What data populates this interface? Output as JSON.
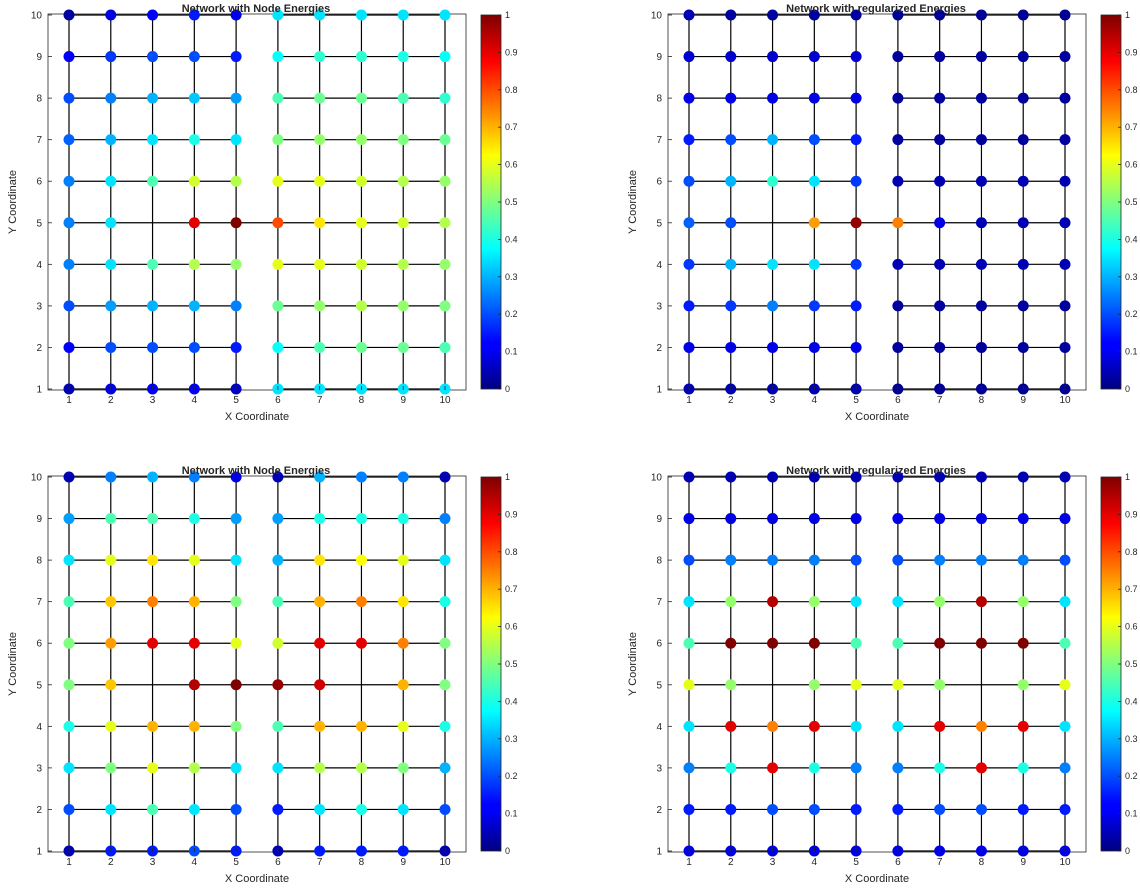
{
  "chart_data": [
    {
      "type": "scatter",
      "title": "Network with Node Energies",
      "xlabel": "X Coordinate",
      "ylabel": "Y Coordinate",
      "xlim": [
        1,
        10
      ],
      "ylim": [
        1,
        10
      ],
      "xticks": [
        "1",
        "2",
        "3",
        "4",
        "5",
        "6",
        "7",
        "8",
        "9",
        "10"
      ],
      "yticks": [
        "1",
        "2",
        "3",
        "4",
        "5",
        "6",
        "7",
        "8",
        "9",
        "10"
      ],
      "colorbar": {
        "ticks": [
          "0",
          "0.1",
          "0.2",
          "0.3",
          "0.4",
          "0.5",
          "0.6",
          "0.7",
          "0.8",
          "0.9",
          "1"
        ],
        "range": [
          0,
          1
        ],
        "colormap": "jet"
      },
      "grid_links": "4-neighbour grid; column 5 and column 6 connected only at y=5; row y=5 missing links between x=2 and x=4",
      "energy_grid": [
        [
          0.05,
          0.1,
          0.12,
          0.12,
          0.07,
          0.35,
          0.35,
          0.35,
          0.35,
          0.35
        ],
        [
          0.12,
          0.2,
          0.2,
          0.2,
          0.15,
          0.38,
          0.45,
          0.48,
          0.48,
          0.45
        ],
        [
          0.2,
          0.28,
          0.3,
          0.3,
          0.25,
          0.48,
          0.52,
          0.55,
          0.52,
          0.5
        ],
        [
          0.25,
          0.35,
          0.45,
          0.55,
          0.52,
          0.6,
          0.6,
          0.58,
          0.55,
          0.52
        ],
        [
          0.25,
          0.35,
          null,
          0.9,
          1.0,
          0.8,
          0.65,
          0.6,
          0.58,
          0.55
        ],
        [
          0.25,
          0.35,
          0.45,
          0.58,
          0.55,
          0.6,
          0.6,
          0.58,
          0.55,
          0.52
        ],
        [
          0.22,
          0.3,
          0.35,
          0.4,
          0.35,
          0.5,
          0.52,
          0.52,
          0.5,
          0.48
        ],
        [
          0.2,
          0.25,
          0.3,
          0.32,
          0.28,
          0.45,
          0.48,
          0.48,
          0.45,
          0.42
        ],
        [
          0.12,
          0.18,
          0.2,
          0.2,
          0.15,
          0.38,
          0.42,
          0.42,
          0.4,
          0.38
        ],
        [
          0.03,
          0.1,
          0.12,
          0.15,
          0.1,
          0.35,
          0.35,
          0.35,
          0.35,
          0.35
        ]
      ]
    },
    {
      "type": "scatter",
      "title": "Network with regularized Energies",
      "xlabel": "X Coordinate",
      "ylabel": "Y Coordinate",
      "xlim": [
        1,
        10
      ],
      "ylim": [
        1,
        10
      ],
      "xticks": [
        "1",
        "2",
        "3",
        "4",
        "5",
        "6",
        "7",
        "8",
        "9",
        "10"
      ],
      "yticks": [
        "1",
        "2",
        "3",
        "4",
        "5",
        "6",
        "7",
        "8",
        "9",
        "10"
      ],
      "colorbar": {
        "ticks": [
          "0",
          "0.1",
          "0.2",
          "0.3",
          "0.4",
          "0.5",
          "0.6",
          "0.7",
          "0.8",
          "0.9",
          "1"
        ],
        "range": [
          0,
          1
        ],
        "colormap": "jet"
      },
      "grid_links": "4-neighbour grid; column 5 and column 6 connected only at y=5; row y=5 missing links between x=2 and x=4",
      "energy_grid": [
        [
          0.05,
          0.05,
          0.05,
          0.05,
          0.05,
          0.02,
          0.02,
          0.02,
          0.02,
          0.02
        ],
        [
          0.1,
          0.1,
          0.1,
          0.1,
          0.1,
          0.03,
          0.03,
          0.03,
          0.03,
          0.03
        ],
        [
          0.15,
          0.18,
          0.25,
          0.18,
          0.15,
          0.03,
          0.03,
          0.03,
          0.03,
          0.03
        ],
        [
          0.18,
          0.3,
          0.35,
          0.35,
          0.18,
          0.05,
          0.05,
          0.05,
          0.05,
          0.05
        ],
        [
          0.22,
          0.2,
          null,
          0.72,
          0.98,
          0.75,
          0.1,
          0.05,
          0.05,
          0.05
        ],
        [
          0.2,
          0.3,
          0.42,
          0.35,
          0.18,
          0.05,
          0.05,
          0.05,
          0.05,
          0.05
        ],
        [
          0.15,
          0.2,
          0.3,
          0.2,
          0.15,
          0.03,
          0.03,
          0.03,
          0.03,
          0.03
        ],
        [
          0.1,
          0.1,
          0.1,
          0.1,
          0.1,
          0.03,
          0.03,
          0.03,
          0.03,
          0.03
        ],
        [
          0.08,
          0.08,
          0.08,
          0.08,
          0.08,
          0.03,
          0.03,
          0.03,
          0.03,
          0.03
        ],
        [
          0.05,
          0.03,
          0.03,
          0.03,
          0.03,
          0.02,
          0.02,
          0.02,
          0.02,
          0.02
        ]
      ]
    },
    {
      "type": "scatter",
      "title": "Network with Node Energies",
      "xlabel": "X Coordinate",
      "ylabel": "Y Coordinate",
      "xlim": [
        1,
        10
      ],
      "ylim": [
        1,
        10
      ],
      "xticks": [
        "1",
        "2",
        "3",
        "4",
        "5",
        "6",
        "7",
        "8",
        "9",
        "10"
      ],
      "yticks": [
        "1",
        "2",
        "3",
        "4",
        "5",
        "6",
        "7",
        "8",
        "9",
        "10"
      ],
      "colorbar": {
        "ticks": [
          "0",
          "0.1",
          "0.2",
          "0.3",
          "0.4",
          "0.5",
          "0.6",
          "0.7",
          "0.8",
          "0.9",
          "1"
        ],
        "range": [
          0,
          1
        ],
        "colormap": "jet"
      },
      "grid_links": "4-neighbour grid; column 5 and column 6 connected only at y=5; row y=5 missing links between x=2 and x=4",
      "energy_grid": [
        [
          0.05,
          0.15,
          0.15,
          0.2,
          0.15,
          0.05,
          0.15,
          0.15,
          0.15,
          0.05
        ],
        [
          0.2,
          0.35,
          0.45,
          0.35,
          0.2,
          0.15,
          0.35,
          0.4,
          0.35,
          0.2
        ],
        [
          0.35,
          0.5,
          0.6,
          0.55,
          0.35,
          0.35,
          0.55,
          0.55,
          0.5,
          0.3
        ],
        [
          0.4,
          0.6,
          0.7,
          0.7,
          0.5,
          0.45,
          0.7,
          0.7,
          0.6,
          0.4
        ],
        [
          0.5,
          0.68,
          null,
          0.95,
          1.0,
          0.98,
          0.92,
          null,
          0.7,
          0.5
        ],
        [
          0.5,
          0.72,
          0.9,
          0.9,
          0.6,
          0.58,
          0.9,
          0.9,
          0.75,
          0.5
        ],
        [
          0.45,
          0.68,
          0.75,
          0.7,
          0.5,
          0.45,
          0.7,
          0.75,
          0.65,
          0.4
        ],
        [
          0.35,
          0.6,
          0.65,
          0.6,
          0.35,
          0.3,
          0.65,
          0.62,
          0.6,
          0.35
        ],
        [
          0.28,
          0.45,
          0.45,
          0.4,
          0.28,
          0.28,
          0.4,
          0.4,
          0.4,
          0.25
        ],
        [
          0.05,
          0.25,
          0.3,
          0.25,
          0.1,
          0.05,
          0.3,
          0.25,
          0.25,
          0.05
        ]
      ]
    },
    {
      "type": "scatter",
      "title": "Network with regularized Energies",
      "xlabel": "X Coordinate",
      "ylabel": "Y Coordinate",
      "xlim": [
        1,
        10
      ],
      "ylim": [
        1,
        10
      ],
      "xticks": [
        "1",
        "2",
        "3",
        "4",
        "5",
        "6",
        "7",
        "8",
        "9",
        "10"
      ],
      "yticks": [
        "1",
        "2",
        "3",
        "4",
        "5",
        "6",
        "7",
        "8",
        "9",
        "10"
      ],
      "colorbar": {
        "ticks": [
          "0",
          "0.1",
          "0.2",
          "0.3",
          "0.4",
          "0.5",
          "0.6",
          "0.7",
          "0.8",
          "0.9",
          "1"
        ],
        "range": [
          0,
          1
        ],
        "colormap": "jet"
      },
      "grid_links": "4-neighbour grid; column 5 and column 6 connected only at y=5; row y=5 missing links between x=2 and x=4",
      "energy_grid": [
        [
          0.1,
          0.1,
          0.1,
          0.1,
          0.1,
          0.1,
          0.1,
          0.1,
          0.1,
          0.1
        ],
        [
          0.15,
          0.15,
          0.2,
          0.2,
          0.15,
          0.15,
          0.2,
          0.2,
          0.15,
          0.15
        ],
        [
          0.25,
          0.4,
          0.9,
          0.4,
          0.25,
          0.25,
          0.4,
          0.9,
          0.4,
          0.25
        ],
        [
          0.35,
          0.9,
          0.75,
          0.9,
          0.35,
          0.35,
          0.9,
          0.75,
          0.9,
          0.35
        ],
        [
          0.6,
          0.52,
          null,
          0.52,
          0.6,
          0.6,
          0.52,
          null,
          0.52,
          0.6
        ],
        [
          0.45,
          1.0,
          1.0,
          1.0,
          0.45,
          0.45,
          1.0,
          1.0,
          1.0,
          0.45
        ],
        [
          0.35,
          0.52,
          0.95,
          0.52,
          0.35,
          0.35,
          0.52,
          0.95,
          0.52,
          0.35
        ],
        [
          0.2,
          0.25,
          0.25,
          0.25,
          0.2,
          0.2,
          0.25,
          0.25,
          0.25,
          0.2
        ],
        [
          0.1,
          0.1,
          0.1,
          0.1,
          0.1,
          0.1,
          0.1,
          0.1,
          0.1,
          0.1
        ],
        [
          0.05,
          0.05,
          0.05,
          0.05,
          0.05,
          0.05,
          0.05,
          0.05,
          0.05,
          0.05
        ]
      ]
    }
  ]
}
